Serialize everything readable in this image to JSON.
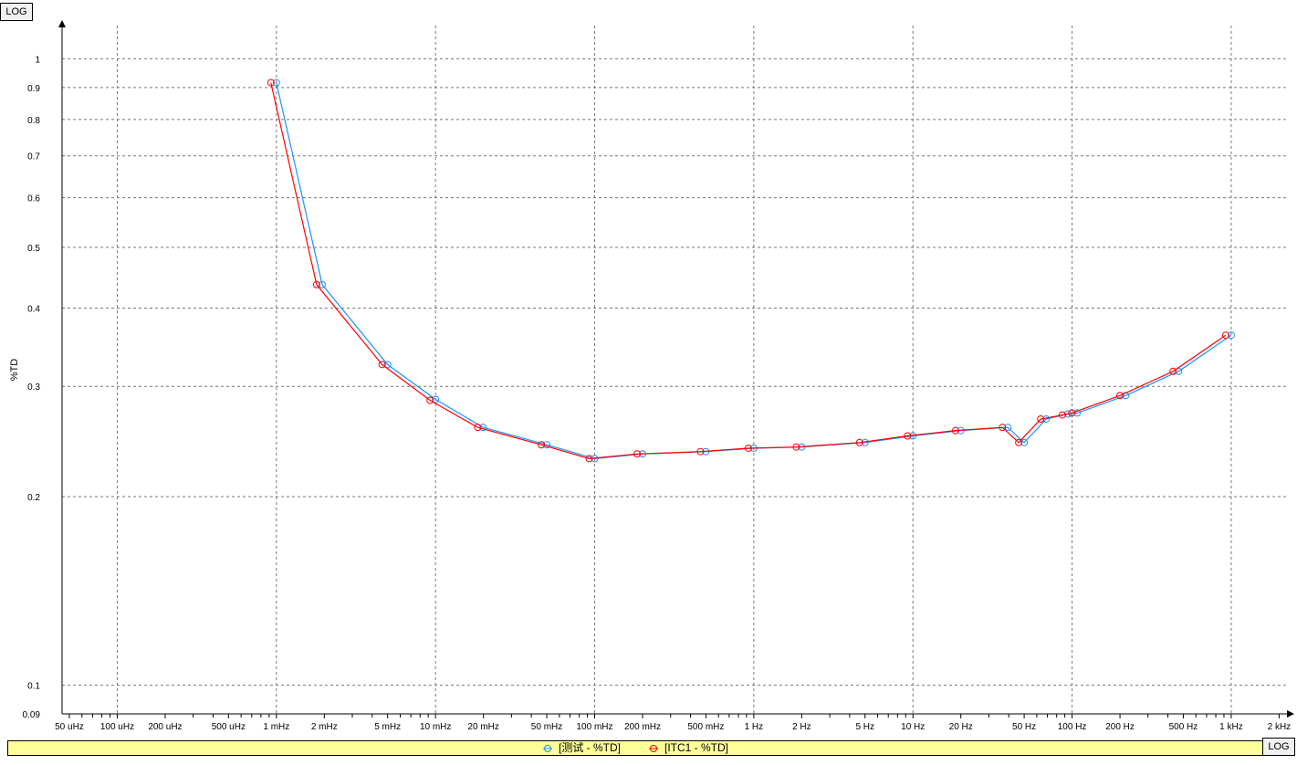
{
  "chart_data": {
    "type": "line",
    "title": "",
    "xlabel": "",
    "ylabel": "%TD",
    "x_scale": "log",
    "y_scale": "log",
    "x_scale_label": "LOG",
    "y_scale_label": "LOG",
    "xlim": [
      4.5e-05,
      2300
    ],
    "ylim": [
      0.09,
      1.13
    ],
    "grid": true,
    "legend_position": "bottom",
    "x_tick_labels": [
      {
        "value": 5e-05,
        "label": "50 uHz"
      },
      {
        "value": 0.0001,
        "label": "100 uHz"
      },
      {
        "value": 0.0002,
        "label": "200 uHz"
      },
      {
        "value": 0.0005,
        "label": "500 uHz"
      },
      {
        "value": 0.001,
        "label": "1 mHz"
      },
      {
        "value": 0.002,
        "label": "2 mHz"
      },
      {
        "value": 0.005,
        "label": "5 mHz"
      },
      {
        "value": 0.01,
        "label": "10 mHz"
      },
      {
        "value": 0.02,
        "label": "20 mHz"
      },
      {
        "value": 0.05,
        "label": "50 mHz"
      },
      {
        "value": 0.1,
        "label": "100 mHz"
      },
      {
        "value": 0.2,
        "label": "200 mHz"
      },
      {
        "value": 0.5,
        "label": "500 mHz"
      },
      {
        "value": 1,
        "label": "1 Hz"
      },
      {
        "value": 2,
        "label": "2 Hz"
      },
      {
        "value": 5,
        "label": "5 Hz"
      },
      {
        "value": 10,
        "label": "10 Hz"
      },
      {
        "value": 20,
        "label": "20 Hz"
      },
      {
        "value": 50,
        "label": "50 Hz"
      },
      {
        "value": 100,
        "label": "100 Hz"
      },
      {
        "value": 200,
        "label": "200 Hz"
      },
      {
        "value": 500,
        "label": "500 Hz"
      },
      {
        "value": 1000,
        "label": "1 kHz"
      },
      {
        "value": 2000,
        "label": "2 kHz"
      }
    ],
    "y_tick_labels": [
      {
        "value": 1,
        "label": "1"
      },
      {
        "value": 0.9,
        "label": "0.9"
      },
      {
        "value": 0.8,
        "label": "0.8"
      },
      {
        "value": 0.7,
        "label": "0.7"
      },
      {
        "value": 0.6,
        "label": "0.6"
      },
      {
        "value": 0.5,
        "label": "0.5"
      },
      {
        "value": 0.4,
        "label": "0.4"
      },
      {
        "value": 0.3,
        "label": "0.3"
      },
      {
        "value": 0.2,
        "label": "0.2"
      },
      {
        "value": 0.1,
        "label": "0.1"
      },
      {
        "value": 0.09,
        "label": "0.09"
      }
    ],
    "series": [
      {
        "name": "[测试 - %TD]",
        "color": "#1e90ff",
        "x": [
          0.001,
          0.00194,
          0.005,
          0.01,
          0.0199,
          0.05,
          0.1,
          0.2,
          0.5,
          1,
          2,
          5,
          10,
          20,
          39.5,
          50,
          68.7,
          94,
          107.8,
          217,
          467,
          1000
        ],
        "y": [
          0.916,
          0.436,
          0.325,
          0.286,
          0.258,
          0.242,
          0.23,
          0.234,
          0.236,
          0.239,
          0.24,
          0.244,
          0.25,
          0.255,
          0.258,
          0.244,
          0.266,
          0.271,
          0.272,
          0.29,
          0.317,
          0.362
        ]
      },
      {
        "name": "[ITC1 - %TD]",
        "color": "#ff0000",
        "x": [
          0.000924,
          0.00179,
          0.00462,
          0.00924,
          0.0184,
          0.0462,
          0.0924,
          0.185,
          0.462,
          0.924,
          1.85,
          4.62,
          9.24,
          18.5,
          36.5,
          46.2,
          63.5,
          86.9,
          99.6,
          200,
          431,
          924
        ],
        "y": [
          0.916,
          0.436,
          0.325,
          0.285,
          0.258,
          0.242,
          0.23,
          0.234,
          0.236,
          0.239,
          0.24,
          0.244,
          0.25,
          0.255,
          0.258,
          0.244,
          0.266,
          0.27,
          0.272,
          0.29,
          0.317,
          0.362
        ]
      }
    ]
  }
}
